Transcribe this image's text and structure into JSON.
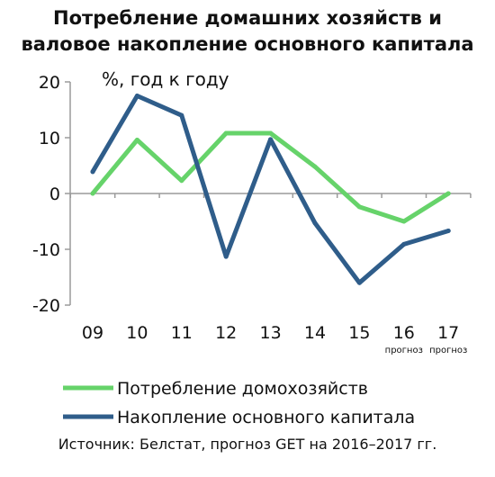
{
  "title_lines": [
    "Потребление домашних хозяйств и",
    "валовое накопление основного капитала"
  ],
  "source": "Источник: Белстат, прогноз GET на 2016–2017 гг.",
  "chart_data": {
    "type": "line",
    "ylabel": "%,  год к году",
    "categories": [
      "09",
      "10",
      "11",
      "12",
      "13",
      "14",
      "15",
      "16",
      "17"
    ],
    "category_notes": [
      "",
      "",
      "",
      "",
      "",
      "",
      "",
      "прогноз",
      "прогноз"
    ],
    "y_ticks": [
      20,
      10,
      0,
      -10,
      -20
    ],
    "ylim": [
      -20,
      20
    ],
    "grid": false,
    "legend_position": "bottom",
    "series": [
      {
        "name": "Потребление домохозяйств",
        "color": "#66d36a",
        "values": [
          0,
          9.6,
          2.3,
          10.8,
          10.8,
          4.8,
          -2.4,
          -5.0,
          0
        ]
      },
      {
        "name": "Накопление основного капитала",
        "color": "#2f5d8a",
        "values": [
          3.9,
          17.5,
          14.0,
          -11.3,
          9.7,
          -5.3,
          -16.0,
          -9.1,
          -6.7
        ]
      }
    ]
  }
}
